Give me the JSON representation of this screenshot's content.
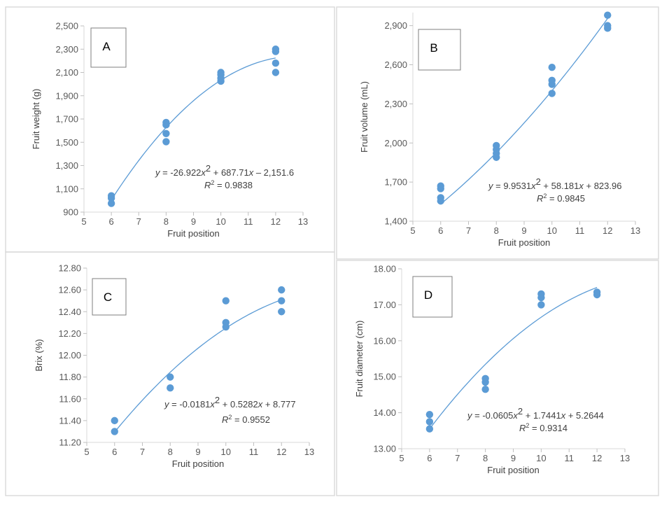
{
  "chart_data": [
    {
      "type": "scatter",
      "panel_label": "A",
      "xlabel": "Fruit position",
      "ylabel": "Fruit weight (g)",
      "xlim": [
        5,
        13
      ],
      "ylim": [
        900,
        2500
      ],
      "x_ticks": [
        5,
        6,
        7,
        8,
        9,
        10,
        11,
        12,
        13
      ],
      "x_tick_labels": [
        "5",
        "6",
        "7",
        "8",
        "9",
        "10",
        "11",
        "12",
        "13"
      ],
      "y_ticks": [
        900,
        1100,
        1300,
        1500,
        1700,
        1900,
        2100,
        2300,
        2500
      ],
      "y_tick_labels": [
        "900",
        "1,100",
        "1,300",
        "1,500",
        "1,700",
        "1,900",
        "2,100",
        "2,300",
        "2,500"
      ],
      "points": [
        {
          "x": 6,
          "y": 975
        },
        {
          "x": 6,
          "y": 1020
        },
        {
          "x": 6,
          "y": 1040
        },
        {
          "x": 8,
          "y": 1505
        },
        {
          "x": 8,
          "y": 1575
        },
        {
          "x": 8,
          "y": 1650
        },
        {
          "x": 8,
          "y": 1670
        },
        {
          "x": 10,
          "y": 2025
        },
        {
          "x": 10,
          "y": 2050
        },
        {
          "x": 10,
          "y": 2080
        },
        {
          "x": 10,
          "y": 2100
        },
        {
          "x": 12,
          "y": 2100
        },
        {
          "x": 12,
          "y": 2180
        },
        {
          "x": 12,
          "y": 2280
        },
        {
          "x": 12,
          "y": 2300
        }
      ],
      "fit": {
        "a": -26.922,
        "b": 687.71,
        "c": -2151.6,
        "x_range": [
          6,
          12
        ]
      },
      "equation": {
        "y_var": "y",
        "eq_a": " = -26.922",
        "x1": "x",
        "sup": "2",
        "eq_b": " + 687.71",
        "x2": "x",
        "eq_c": " – 2,151.6"
      },
      "r2": {
        "r": "R",
        "sup": "2",
        "rest": " = 0.9838"
      }
    },
    {
      "type": "scatter",
      "panel_label": "B",
      "xlabel": "Fruit position",
      "ylabel": "Fruit volume (mL)",
      "xlim": [
        5,
        13
      ],
      "ylim": [
        1400,
        3000
      ],
      "x_ticks": [
        5,
        6,
        7,
        8,
        9,
        10,
        11,
        12,
        13
      ],
      "x_tick_labels": [
        "5",
        "6",
        "7",
        "8",
        "9",
        "10",
        "11",
        "12",
        "13"
      ],
      "y_ticks": [
        1400,
        1700,
        2000,
        2300,
        2600,
        2900
      ],
      "y_tick_labels": [
        "1,400",
        "1,700",
        "2,000",
        "2,300",
        "2,600",
        "2,900"
      ],
      "points": [
        {
          "x": 6,
          "y": 1555
        },
        {
          "x": 6,
          "y": 1580
        },
        {
          "x": 6,
          "y": 1650
        },
        {
          "x": 6,
          "y": 1670
        },
        {
          "x": 8,
          "y": 1890
        },
        {
          "x": 8,
          "y": 1920
        },
        {
          "x": 8,
          "y": 1950
        },
        {
          "x": 8,
          "y": 1980
        },
        {
          "x": 10,
          "y": 2380
        },
        {
          "x": 10,
          "y": 2450
        },
        {
          "x": 10,
          "y": 2480
        },
        {
          "x": 10,
          "y": 2580
        },
        {
          "x": 12,
          "y": 2880
        },
        {
          "x": 12,
          "y": 2900
        },
        {
          "x": 12,
          "y": 2980
        }
      ],
      "fit": {
        "a": 9.9531,
        "b": 58.181,
        "c": 823.96,
        "x_range": [
          6,
          12
        ]
      },
      "equation": {
        "y_var": "y",
        "eq_a": " = 9.9531",
        "x1": "x",
        "sup": "2",
        "eq_b": " + 58.181",
        "x2": "x",
        "eq_c": " + 823.96"
      },
      "r2": {
        "r": "R",
        "sup": "2",
        "rest": " = 0.9845"
      }
    },
    {
      "type": "scatter",
      "panel_label": "C",
      "xlabel": "Fruit position",
      "ylabel": "Brix (%)",
      "xlim": [
        5,
        13
      ],
      "ylim": [
        11.2,
        12.8
      ],
      "x_ticks": [
        5,
        6,
        7,
        8,
        9,
        10,
        11,
        12,
        13
      ],
      "x_tick_labels": [
        "5",
        "6",
        "7",
        "8",
        "9",
        "10",
        "11",
        "12",
        "13"
      ],
      "y_ticks": [
        11.2,
        11.4,
        11.6,
        11.8,
        12.0,
        12.2,
        12.4,
        12.6,
        12.8
      ],
      "y_tick_labels": [
        "11.20",
        "11.40",
        "11.60",
        "11.80",
        "12.00",
        "12.20",
        "12.40",
        "12.60",
        "12.80"
      ],
      "points": [
        {
          "x": 6,
          "y": 11.3
        },
        {
          "x": 6,
          "y": 11.4
        },
        {
          "x": 8,
          "y": 11.7
        },
        {
          "x": 8,
          "y": 11.8
        },
        {
          "x": 10,
          "y": 12.26
        },
        {
          "x": 10,
          "y": 12.3
        },
        {
          "x": 10,
          "y": 12.5
        },
        {
          "x": 12,
          "y": 12.4
        },
        {
          "x": 12,
          "y": 12.5
        },
        {
          "x": 12,
          "y": 12.6
        }
      ],
      "fit": {
        "a": -0.0181,
        "b": 0.5282,
        "c": 8.777,
        "x_range": [
          6,
          12
        ]
      },
      "equation": {
        "y_var": "y",
        "eq_a": " = -0.0181",
        "x1": "x",
        "sup": "2",
        "eq_b": " + 0.5282",
        "x2": "x",
        "eq_c": " + 8.777"
      },
      "r2": {
        "r": "R",
        "sup": "2",
        "rest": " = 0.9552"
      }
    },
    {
      "type": "scatter",
      "panel_label": "D",
      "xlabel": "Fruit position",
      "ylabel": "Fruit diameter (cm)",
      "xlim": [
        5,
        13
      ],
      "ylim": [
        13,
        18
      ],
      "x_ticks": [
        5,
        6,
        7,
        8,
        9,
        10,
        11,
        12,
        13
      ],
      "x_tick_labels": [
        "5",
        "6",
        "7",
        "8",
        "9",
        "10",
        "11",
        "12",
        "13"
      ],
      "y_ticks": [
        13,
        14,
        15,
        16,
        17,
        18
      ],
      "y_tick_labels": [
        "13.00",
        "14.00",
        "15.00",
        "16.00",
        "17.00",
        "18.00"
      ],
      "points": [
        {
          "x": 6,
          "y": 13.55
        },
        {
          "x": 6,
          "y": 13.75
        },
        {
          "x": 6,
          "y": 13.95
        },
        {
          "x": 8,
          "y": 14.65
        },
        {
          "x": 8,
          "y": 14.85
        },
        {
          "x": 8,
          "y": 14.95
        },
        {
          "x": 10,
          "y": 17.0
        },
        {
          "x": 10,
          "y": 17.2
        },
        {
          "x": 10,
          "y": 17.3
        },
        {
          "x": 12,
          "y": 17.28
        },
        {
          "x": 12,
          "y": 17.35
        }
      ],
      "fit": {
        "a": -0.0605,
        "b": 1.7441,
        "c": 5.2644,
        "x_range": [
          6,
          12
        ]
      },
      "equation": {
        "y_var": "y",
        "eq_a": " = -0.0605",
        "x1": "x",
        "sup": "2",
        "eq_b": " + 1.7441",
        "x2": "x",
        "eq_c": " + 5.2644"
      },
      "r2": {
        "r": "R",
        "sup": "2",
        "rest": " = 0.9314"
      }
    }
  ]
}
